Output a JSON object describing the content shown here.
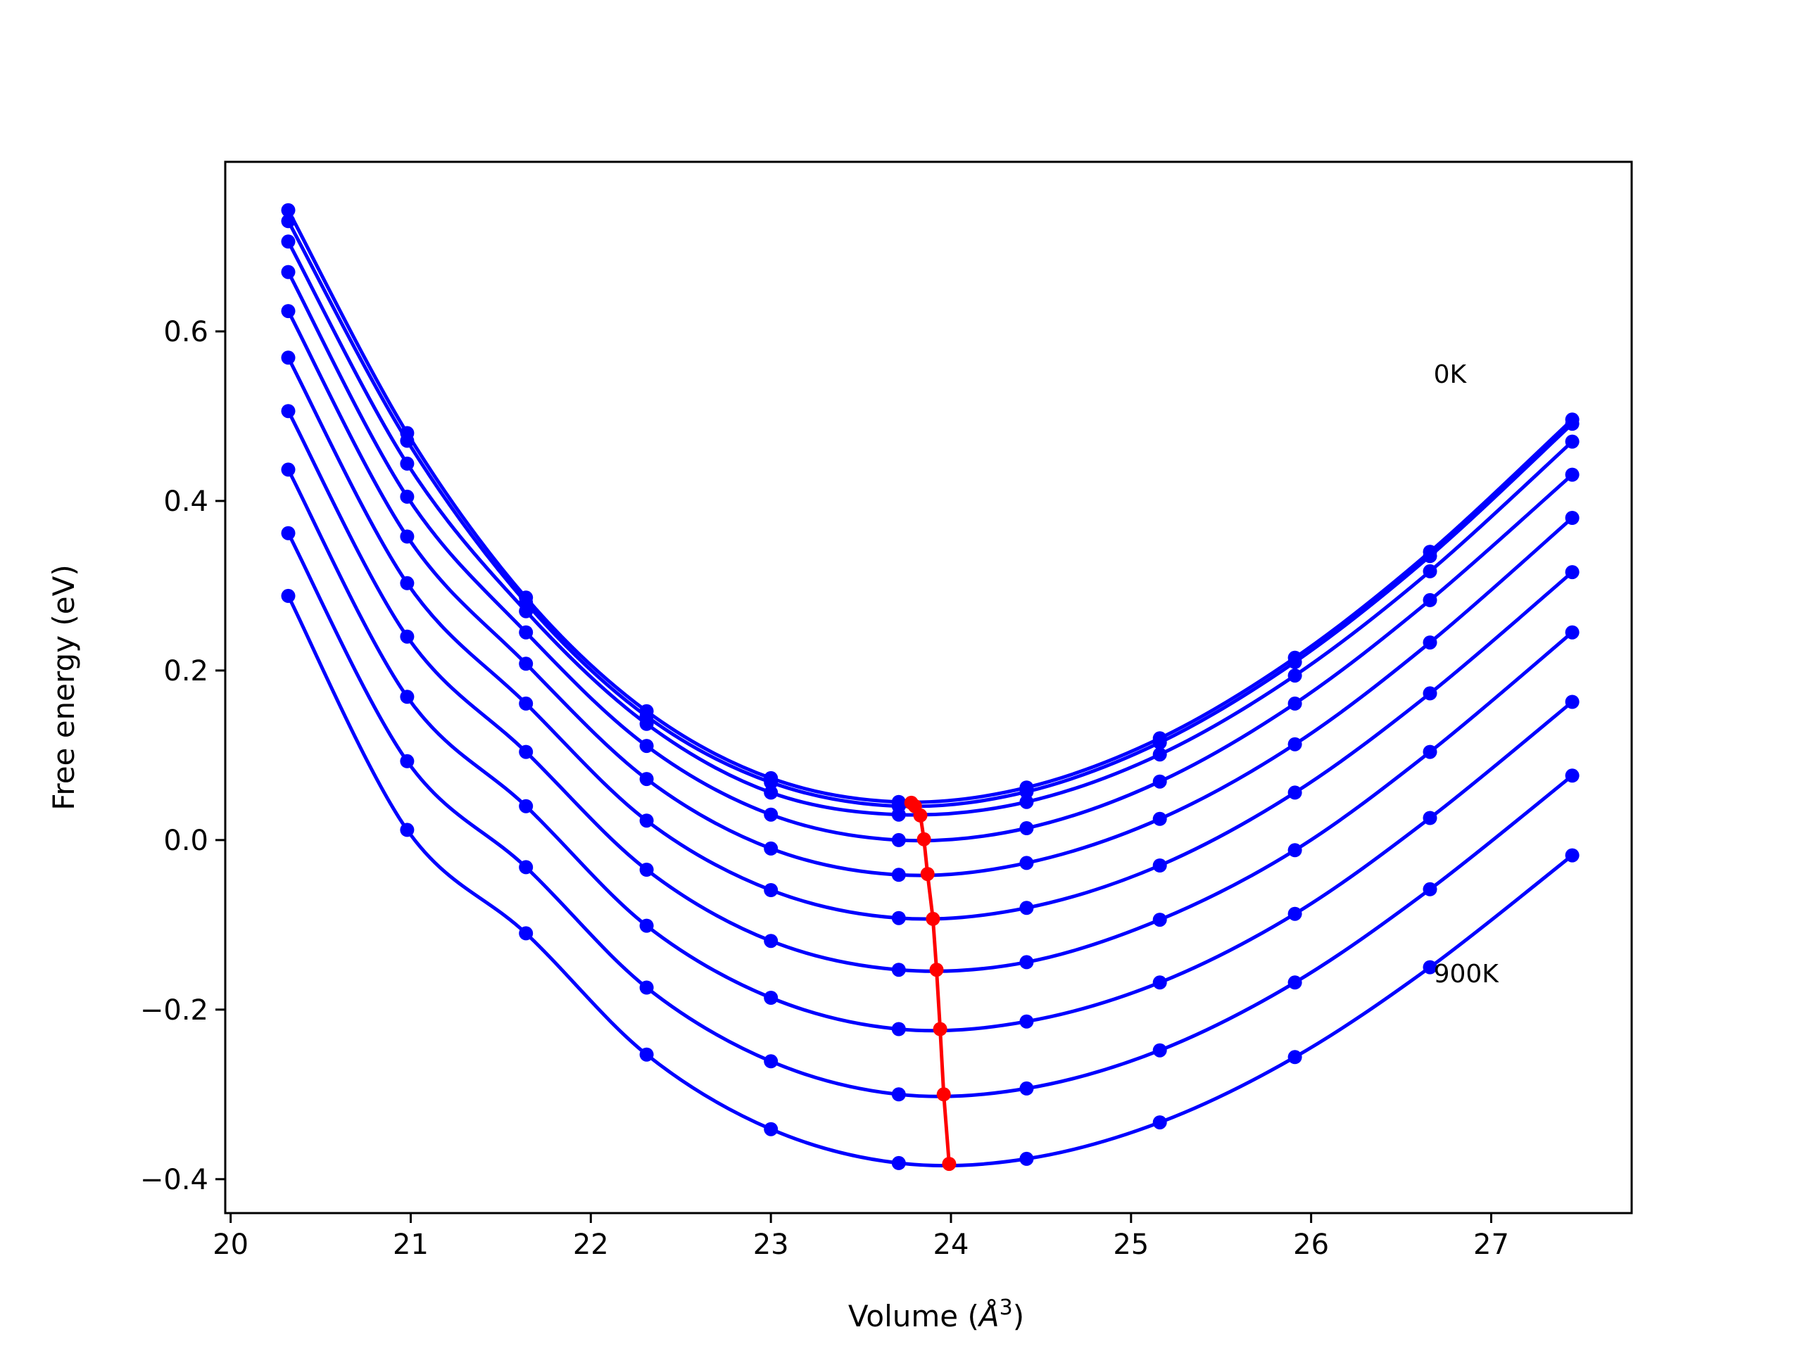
{
  "chart_data": {
    "type": "line",
    "xlabel_main": "Volume (",
    "xlabel_unit": "Å",
    "xlabel_exp": "3",
    "xlabel_close": ")",
    "ylabel": "Free energy (eV)",
    "xlim": [
      19.97,
      27.78
    ],
    "ylim": [
      -0.44,
      0.8
    ],
    "xticks": [
      20,
      21,
      22,
      23,
      24,
      25,
      26,
      27
    ],
    "yticks": [
      -0.4,
      -0.2,
      0.0,
      0.2,
      0.4,
      0.6
    ],
    "ytick_labels": [
      "−0.4",
      "−0.2",
      "0.0",
      "0.2",
      "0.4",
      "0.6"
    ],
    "grid": false,
    "x": [
      20.32,
      20.98,
      21.64,
      22.31,
      23.0,
      23.71,
      24.42,
      25.16,
      25.91,
      26.66,
      27.45
    ],
    "series": [
      {
        "values": [
          0.743,
          0.48,
          0.286,
          0.152,
          0.073,
          0.045,
          0.062,
          0.12,
          0.215,
          0.34,
          0.496
        ]
      },
      {
        "values": [
          0.73,
          0.471,
          0.28,
          0.146,
          0.068,
          0.04,
          0.057,
          0.115,
          0.21,
          0.335,
          0.491
        ]
      },
      {
        "values": [
          0.706,
          0.444,
          0.27,
          0.137,
          0.056,
          0.03,
          0.045,
          0.101,
          0.194,
          0.317,
          0.47
        ]
      },
      {
        "values": [
          0.67,
          0.405,
          0.245,
          0.111,
          0.03,
          0.0,
          0.014,
          0.069,
          0.161,
          0.283,
          0.431
        ]
      },
      {
        "values": [
          0.624,
          0.358,
          0.208,
          0.072,
          -0.01,
          -0.041,
          -0.027,
          0.025,
          0.113,
          0.233,
          0.38
        ]
      },
      {
        "values": [
          0.569,
          0.303,
          0.161,
          0.023,
          -0.059,
          -0.092,
          -0.08,
          -0.03,
          0.056,
          0.173,
          0.316
        ]
      },
      {
        "values": [
          0.506,
          0.24,
          0.104,
          -0.035,
          -0.119,
          -0.153,
          -0.144,
          -0.094,
          -0.012,
          0.104,
          0.245
        ]
      },
      {
        "values": [
          0.437,
          0.169,
          0.04,
          -0.101,
          -0.186,
          -0.223,
          -0.214,
          -0.168,
          -0.087,
          0.026,
          0.163
        ]
      },
      {
        "values": [
          0.362,
          0.093,
          -0.032,
          -0.174,
          -0.261,
          -0.3,
          -0.293,
          -0.248,
          -0.168,
          -0.058,
          0.076
        ]
      },
      {
        "values": [
          0.288,
          0.012,
          -0.11,
          -0.253,
          -0.341,
          -0.381,
          -0.376,
          -0.333,
          -0.256,
          -0.15,
          -0.018
        ]
      }
    ],
    "minima": {
      "x": [
        23.78,
        23.8,
        23.83,
        23.85,
        23.87,
        23.9,
        23.92,
        23.94,
        23.96,
        23.99
      ],
      "y": [
        0.044,
        0.04,
        0.029,
        0.001,
        -0.04,
        -0.093,
        -0.153,
        -0.223,
        -0.3,
        -0.382
      ]
    },
    "annotations": [
      {
        "text": "0K",
        "x": 26.68,
        "y": 0.55
      },
      {
        "text": "900K",
        "x": 26.68,
        "y": -0.157
      }
    ],
    "colors": {
      "curves": "#0000ff",
      "minima": "#ff0000"
    }
  }
}
